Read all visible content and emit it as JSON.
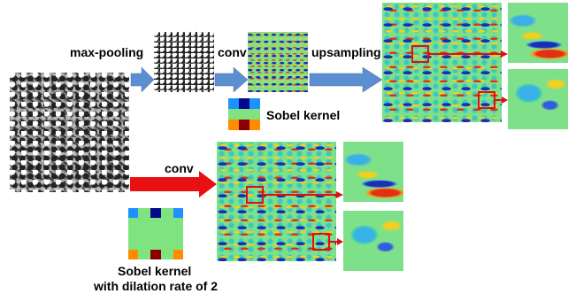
{
  "labels": {
    "max_pooling": "max-pooling",
    "conv_top": "conv",
    "upsampling": "upsampling",
    "conv_bottom": "conv",
    "sobel_kernel": "Sobel kernel",
    "dilated_line1": "Sobel kernel",
    "dilated_line2": "with dilation rate of 2"
  },
  "colors": {
    "blue_arrow": "#5b8fd1",
    "red_arrow": "#e81010",
    "highlight_box": "#e01010",
    "kernel_light_blue": "#1e90ff",
    "kernel_dark_blue": "#000a8c",
    "kernel_green": "#7fe37f",
    "kernel_orange": "#ff8c00",
    "kernel_dark_red": "#8b0000"
  }
}
